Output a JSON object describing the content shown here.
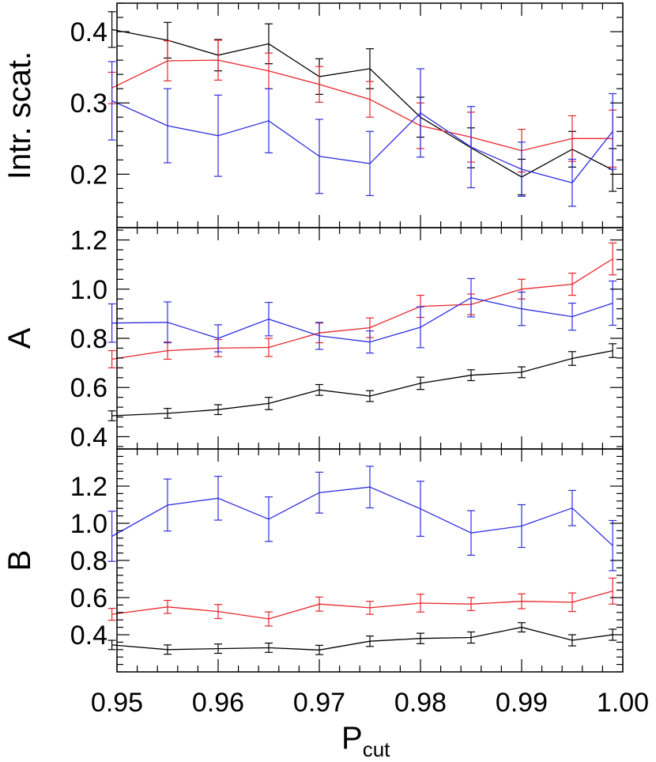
{
  "chart_data": {
    "type": "line",
    "x": [
      0.9495,
      0.955,
      0.96,
      0.965,
      0.97,
      0.975,
      0.98,
      0.985,
      0.99,
      0.995,
      0.999
    ],
    "xlim": [
      0.95,
      1.0
    ],
    "xticks": [
      0.95,
      0.96,
      0.97,
      0.98,
      0.99,
      1.0
    ],
    "xtick_labels": [
      "0.95",
      "0.96",
      "0.97",
      "0.98",
      "0.99",
      "1.00"
    ],
    "xlabel": "P",
    "xlabel_sub": "cut",
    "colors": {
      "black": "#000000",
      "red": "#e8262b",
      "blue": "#2f2fe0"
    },
    "panels": [
      {
        "ylabel": "Intr. scat.",
        "ylim": [
          0.125,
          0.44
        ],
        "yticks": [
          0.2,
          0.3,
          0.4
        ],
        "ytick_labels": [
          "0.2",
          "0.3",
          "0.4"
        ],
        "series": [
          {
            "color": "black",
            "y": [
              0.403,
              0.388,
              0.367,
              0.383,
              0.337,
              0.348,
              0.28,
              0.237,
              0.196,
              0.235,
              0.206
            ],
            "err": [
              0.025,
              0.025,
              0.022,
              0.028,
              0.025,
              0.028,
              0.028,
              0.028,
              0.025,
              0.025,
              0.03
            ]
          },
          {
            "color": "red",
            "y": [
              0.321,
              0.359,
              0.36,
              0.345,
              0.326,
              0.305,
              0.268,
              0.252,
              0.233,
              0.25,
              0.25
            ],
            "err": [
              0.022,
              0.028,
              0.028,
              0.025,
              0.025,
              0.025,
              0.032,
              0.035,
              0.03,
              0.032,
              0.04
            ]
          },
          {
            "color": "blue",
            "y": [
              0.303,
              0.268,
              0.254,
              0.275,
              0.225,
              0.215,
              0.286,
              0.238,
              0.207,
              0.188,
              0.26
            ],
            "err": [
              0.055,
              0.052,
              0.057,
              0.045,
              0.052,
              0.045,
              0.062,
              0.057,
              0.038,
              0.033,
              0.053
            ]
          }
        ]
      },
      {
        "ylabel": "A",
        "ylim": [
          0.35,
          1.25
        ],
        "yticks": [
          0.4,
          0.6,
          0.8,
          1.0,
          1.2
        ],
        "ytick_labels": [
          "0.4",
          "0.6",
          "0.8",
          "1.0",
          "1.2"
        ],
        "series": [
          {
            "color": "black",
            "y": [
              0.485,
              0.495,
              0.51,
              0.535,
              0.59,
              0.565,
              0.617,
              0.65,
              0.662,
              0.718,
              0.75
            ],
            "err": [
              0.02,
              0.02,
              0.02,
              0.025,
              0.022,
              0.022,
              0.025,
              0.022,
              0.022,
              0.028,
              0.028
            ]
          },
          {
            "color": "red",
            "y": [
              0.715,
              0.75,
              0.76,
              0.763,
              0.822,
              0.843,
              0.93,
              0.938,
              1.0,
              1.02,
              1.123
            ],
            "err": [
              0.035,
              0.035,
              0.035,
              0.037,
              0.04,
              0.04,
              0.045,
              0.042,
              0.04,
              0.045,
              0.065
            ]
          },
          {
            "color": "blue",
            "y": [
              0.862,
              0.865,
              0.8,
              0.878,
              0.81,
              0.785,
              0.845,
              0.965,
              0.92,
              0.888,
              0.943
            ],
            "err": [
              0.078,
              0.083,
              0.055,
              0.068,
              0.055,
              0.045,
              0.083,
              0.078,
              0.068,
              0.055,
              0.09
            ]
          }
        ]
      },
      {
        "ylabel": "B",
        "ylim": [
          0.2,
          1.4
        ],
        "yticks": [
          0.4,
          0.6,
          0.8,
          1.0,
          1.2
        ],
        "ytick_labels": [
          "0.4",
          "0.6",
          "0.8",
          "1.0",
          "1.2"
        ],
        "series": [
          {
            "color": "black",
            "y": [
              0.345,
              0.32,
              0.325,
              0.33,
              0.318,
              0.365,
              0.38,
              0.385,
              0.44,
              0.37,
              0.4
            ],
            "err": [
              0.025,
              0.025,
              0.025,
              0.025,
              0.025,
              0.028,
              0.028,
              0.03,
              0.025,
              0.03,
              0.03
            ]
          },
          {
            "color": "red",
            "y": [
              0.51,
              0.55,
              0.525,
              0.485,
              0.565,
              0.545,
              0.57,
              0.565,
              0.58,
              0.575,
              0.635
            ],
            "err": [
              0.032,
              0.035,
              0.038,
              0.038,
              0.038,
              0.035,
              0.048,
              0.035,
              0.04,
              0.05,
              0.07
            ]
          },
          {
            "color": "blue",
            "y": [
              0.93,
              1.098,
              1.135,
              1.022,
              1.165,
              1.195,
              1.078,
              0.948,
              0.985,
              1.082,
              0.88
            ],
            "err": [
              0.135,
              0.14,
              0.118,
              0.12,
              0.11,
              0.112,
              0.148,
              0.12,
              0.115,
              0.095,
              0.135
            ]
          }
        ]
      }
    ]
  }
}
